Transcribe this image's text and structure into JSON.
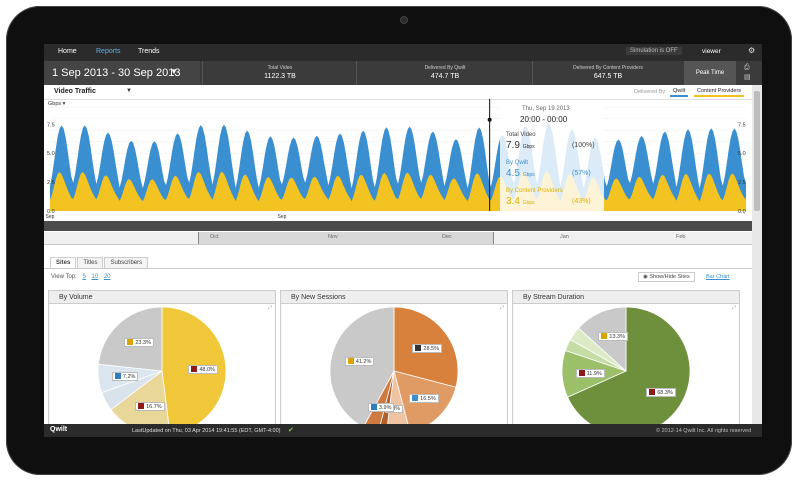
{
  "nav": {
    "items": [
      "Home",
      "Reports",
      "Trends"
    ],
    "active": "Reports",
    "simulation": "Simulation is OFF",
    "user": "viewer",
    "settings_icon": "gear-icon"
  },
  "header": {
    "date_range": "1 Sep 2013 - 30 Sep 2013",
    "stats": [
      {
        "label": "Total Video",
        "value": "1122.3 TB"
      },
      {
        "label": "Delivered By Qwilt",
        "value": "474.7 TB"
      },
      {
        "label": "Delivered By Content Providers",
        "value": "647.5 TB"
      }
    ],
    "peak_time": "Peak Time",
    "icons": [
      "export-icon",
      "print-icon"
    ]
  },
  "chart_toolbar": {
    "title": "Video Traffic",
    "delivered_by": "Delivered By:",
    "toggle_qwilt": "Qwilt",
    "toggle_cp": "Content Providers",
    "units": "Gbps"
  },
  "chart_data": {
    "type": "area",
    "x_label": "Sep",
    "ylim": [
      0,
      9
    ],
    "ytick_labels": [
      "0.0",
      "2.5",
      "5.0",
      "7.5"
    ],
    "grid": true,
    "series": [
      {
        "name": "Content Providers",
        "color": "#f2c321"
      },
      {
        "name": "Qwilt",
        "color": "#3a8fd0"
      }
    ],
    "days": 30,
    "highlight_day": 19
  },
  "tooltip": {
    "date": "Thu, Sep 19 2013",
    "range": "20:00 - 00:00",
    "total_label": "Total Video",
    "total_value": "7.9",
    "total_pct": "(100%)",
    "qwilt_label": "By Qwilt",
    "qwilt_value": "4.5",
    "qwilt_pct": "(57%)",
    "cp_label": "By Content Providers",
    "cp_value": "3.4",
    "cp_pct": "(43%)",
    "unit": "Gbps"
  },
  "navigator": {
    "labels": [
      "Oct",
      "Nov",
      "Dec",
      "Jan",
      "Feb"
    ]
  },
  "tabs": {
    "items": [
      "Sites",
      "Titles",
      "Subscribers"
    ],
    "active": "Sites",
    "view_top_label": "View Top:",
    "view_top_options": [
      "5",
      "10",
      "20"
    ],
    "show_hide": "Show/Hide Sites",
    "bar_chart": "Bar Chart"
  },
  "panels": [
    {
      "title": "By Volume",
      "slices": [
        {
          "value": 48.0,
          "color": "#f1c73a",
          "label": "48.0%",
          "icon": "youtube-logo"
        },
        {
          "value": 16.7,
          "color": "#e9d79a",
          "label": "16.7%",
          "icon": "youtube-logo"
        },
        {
          "value": 4.8,
          "color": "#d8e3ec",
          "label": "",
          "icon": ""
        },
        {
          "value": 7.2,
          "color": "#dce6ef",
          "label": "7.2%",
          "icon": "video-icon"
        },
        {
          "value": 23.3,
          "color": "#c9c9c9",
          "label": "23.3%",
          "icon": "grid-icon"
        }
      ]
    },
    {
      "title": "By New Sessions",
      "slices": [
        {
          "value": 28.5,
          "color": "#d8813c",
          "label": "28.5%",
          "icon": "amazon-logo"
        },
        {
          "value": 16.5,
          "color": "#e09a63",
          "label": "16.5%",
          "icon": "spinner-icon"
        },
        {
          "value": 5.9,
          "color": "#edc3a1",
          "label": "5.9%",
          "icon": ""
        },
        {
          "value": 2.0,
          "color": "#b35f2a",
          "label": "",
          "icon": ""
        },
        {
          "value": 3.9,
          "color": "#cf7a40",
          "label": "3.9%",
          "icon": "video-icon"
        },
        {
          "value": 41.2,
          "color": "#c9c9c9",
          "label": "41.2%",
          "icon": "grid-icon"
        }
      ]
    },
    {
      "title": "By Stream Duration",
      "slices": [
        {
          "value": 68.3,
          "color": "#6e8f3c",
          "label": "68.3%",
          "icon": "youtube-logo"
        },
        {
          "value": 11.9,
          "color": "#9cbf6a",
          "label": "11.9%",
          "icon": "youtube-logo"
        },
        {
          "value": 3.0,
          "color": "#c5dca4",
          "label": "",
          "icon": ""
        },
        {
          "value": 3.5,
          "color": "#dcebc6",
          "label": "",
          "icon": ""
        },
        {
          "value": 13.3,
          "color": "#c9c9c9",
          "label": "13.3%",
          "icon": "grid-icon"
        }
      ]
    }
  ],
  "footer": {
    "logo": "Qwilt",
    "last_updated": "LastUpdated on Thu, 03 Apr 2014 19:41:55 (EDT, GMT-4:00)",
    "copyright": "© 2012-14 Qwilt Inc. All rights reserved"
  }
}
